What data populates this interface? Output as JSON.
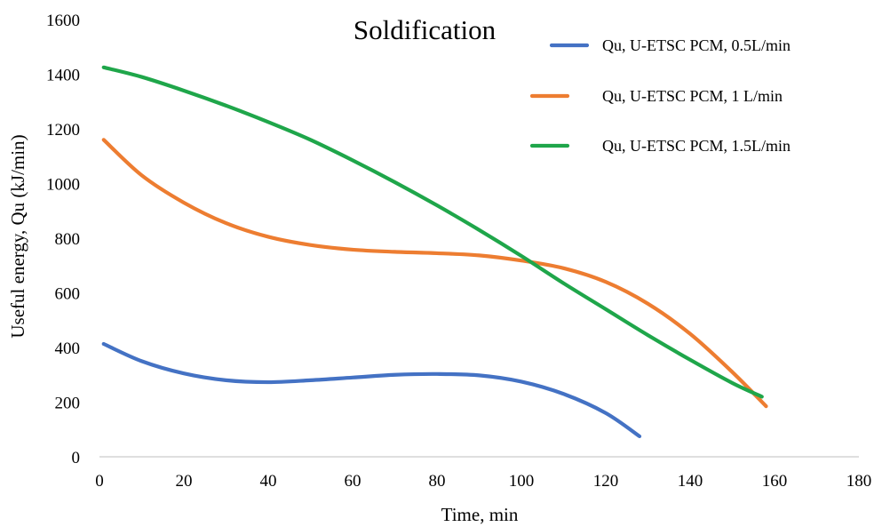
{
  "chart_data": {
    "type": "line",
    "title": "Soldification",
    "xlabel": "Time, min",
    "ylabel": "Useful energy, Qu (kJ/min)",
    "xlim": [
      0,
      180
    ],
    "ylim": [
      0,
      1600
    ],
    "xticks": [
      0,
      20,
      40,
      60,
      80,
      100,
      120,
      140,
      160,
      180
    ],
    "yticks": [
      0,
      200,
      400,
      600,
      800,
      1000,
      1200,
      1400,
      1600
    ],
    "grid": false,
    "legend": "top-right",
    "series": [
      {
        "name": "Qu, U-ETSC PCM, 0.5L/min",
        "color": "#4472C4",
        "x": [
          1,
          10,
          20,
          30,
          40,
          50,
          60,
          70,
          80,
          90,
          100,
          110,
          120,
          128
        ],
        "y": [
          413,
          350,
          305,
          280,
          273,
          280,
          290,
          300,
          303,
          298,
          275,
          230,
          160,
          75
        ]
      },
      {
        "name": "Qu, U-ETSC PCM, 1 L/min",
        "color": "#ED7D31",
        "x": [
          1,
          10,
          20,
          30,
          40,
          50,
          60,
          70,
          80,
          90,
          100,
          110,
          120,
          130,
          140,
          150,
          158
        ],
        "y": [
          1160,
          1030,
          930,
          855,
          805,
          775,
          758,
          750,
          745,
          737,
          718,
          690,
          640,
          560,
          450,
          310,
          185
        ]
      },
      {
        "name": "Qu, U-ETSC PCM, 1.5L/min",
        "color": "#1FA64A",
        "x": [
          1,
          10,
          20,
          30,
          40,
          50,
          60,
          70,
          80,
          90,
          100,
          110,
          120,
          130,
          140,
          150,
          157
        ],
        "y": [
          1425,
          1390,
          1340,
          1285,
          1225,
          1160,
          1085,
          1005,
          920,
          830,
          735,
          635,
          540,
          445,
          355,
          270,
          220
        ]
      }
    ]
  }
}
